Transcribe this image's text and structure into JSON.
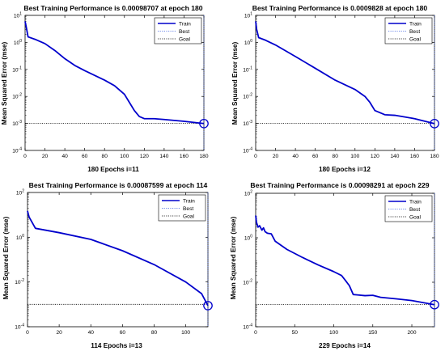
{
  "chart_data": [
    {
      "type": "line",
      "title": "Best Training Performance is 0.00098707 at epoch 180",
      "xlabel": "180 Epochs  i=11",
      "ylabel": "Mean Squared Error  (mse)",
      "y_scale": "log",
      "xlim": [
        0,
        180
      ],
      "ylim_exp": [
        -4,
        1
      ],
      "x_ticks": [
        0,
        20,
        40,
        60,
        80,
        100,
        120,
        140,
        160,
        180
      ],
      "legend": [
        "Train",
        "Best",
        "Goal"
      ],
      "legend_position": "top-right",
      "goal_value": 0.001,
      "best_epoch": 180,
      "best_value": 0.00098707,
      "series": [
        {
          "name": "Train",
          "color": "#0000cc",
          "x": [
            0,
            1,
            3,
            10,
            20,
            30,
            40,
            50,
            60,
            70,
            80,
            90,
            100,
            105,
            110,
            115,
            120,
            130,
            140,
            160,
            180
          ],
          "y": [
            6,
            4,
            1.6,
            1.3,
            0.9,
            0.5,
            0.25,
            0.14,
            0.09,
            0.06,
            0.04,
            0.025,
            0.012,
            0.006,
            0.003,
            0.0018,
            0.0015,
            0.0015,
            0.0014,
            0.0012,
            0.00098707
          ]
        }
      ]
    },
    {
      "type": "line",
      "title": "Best Training Performance is 0.0009828 at epoch 180",
      "xlabel": "180 Epochs  i=12",
      "ylabel": "Mean Squared Error  (mse)",
      "y_scale": "log",
      "xlim": [
        0,
        180
      ],
      "ylim_exp": [
        -4,
        1
      ],
      "x_ticks": [
        0,
        20,
        40,
        60,
        80,
        100,
        120,
        140,
        160,
        180
      ],
      "legend": [
        "Train",
        "Best",
        "Goal"
      ],
      "legend_position": "top-right",
      "goal_value": 0.001,
      "best_epoch": 180,
      "best_value": 0.0009828,
      "series": [
        {
          "name": "Train",
          "color": "#0000cc",
          "x": [
            0,
            1,
            3,
            10,
            20,
            40,
            60,
            80,
            100,
            110,
            115,
            120,
            130,
            140,
            160,
            180
          ],
          "y": [
            6,
            3,
            1.5,
            1.2,
            0.8,
            0.3,
            0.11,
            0.04,
            0.018,
            0.01,
            0.006,
            0.003,
            0.0021,
            0.002,
            0.0015,
            0.0009828
          ]
        }
      ]
    },
    {
      "type": "line",
      "title": "Best Training Performance is 0.00087599 at epoch 114",
      "xlabel": "114 Epochs  i=13",
      "ylabel": "Mean Squared Error  (mse)",
      "y_scale": "log",
      "xlim": [
        0,
        114
      ],
      "ylim_exp": [
        -4,
        2
      ],
      "y_tick_exps": [
        -4,
        -2,
        0,
        2
      ],
      "x_ticks": [
        0,
        20,
        40,
        60,
        80,
        100
      ],
      "legend": [
        "Train",
        "Best",
        "Goal"
      ],
      "legend_position": "top-right",
      "goal_value": 0.001,
      "best_epoch": 114,
      "best_value": 0.00087599,
      "series": [
        {
          "name": "Train",
          "color": "#0000cc",
          "x": [
            0,
            1,
            5,
            20,
            40,
            60,
            80,
            100,
            110,
            114
          ],
          "y": [
            15,
            8,
            2.5,
            1.6,
            0.8,
            0.25,
            0.06,
            0.01,
            0.003,
            0.00087599
          ]
        }
      ]
    },
    {
      "type": "line",
      "title": "Best Training Performance is 0.00098291 at epoch 229",
      "xlabel": "229 Epochs  i=14",
      "ylabel": "Mean Squared Error  (mse)",
      "y_scale": "log",
      "xlim": [
        0,
        229
      ],
      "ylim_exp": [
        -4,
        2
      ],
      "y_tick_exps": [
        -4,
        -2,
        0,
        2
      ],
      "x_ticks": [
        0,
        50,
        100,
        150,
        200
      ],
      "legend": [
        "Train",
        "Best",
        "Goal"
      ],
      "legend_position": "top-right",
      "goal_value": 0.001,
      "best_epoch": 229,
      "best_value": 0.00098291,
      "series": [
        {
          "name": "Train",
          "color": "#0000cc",
          "x": [
            0,
            1,
            3,
            5,
            8,
            10,
            12,
            15,
            20,
            25,
            40,
            60,
            80,
            100,
            110,
            115,
            120,
            125,
            130,
            140,
            150,
            160,
            180,
            200,
            229
          ],
          "y": [
            10,
            5,
            3,
            3.5,
            2.2,
            2.8,
            1.9,
            1.6,
            1.5,
            0.7,
            0.3,
            0.13,
            0.06,
            0.03,
            0.02,
            0.012,
            0.007,
            0.0028,
            0.0027,
            0.0025,
            0.0026,
            0.0021,
            0.0018,
            0.0015,
            0.00098291
          ]
        }
      ]
    }
  ]
}
